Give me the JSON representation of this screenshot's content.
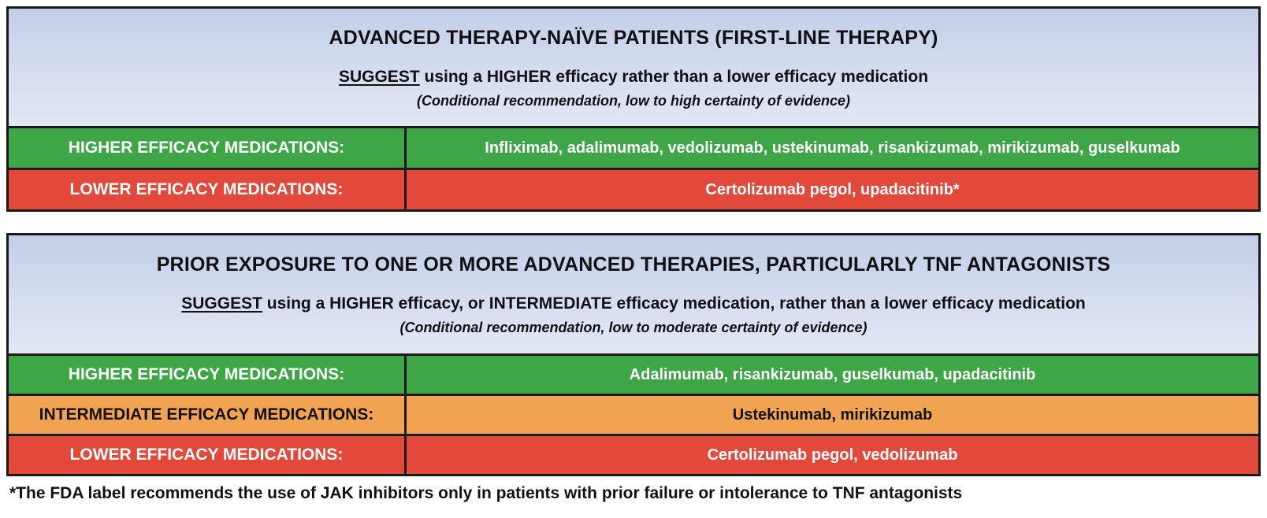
{
  "colors": {
    "panel_border": "#1a1a1a",
    "header_gradient_top": "#c2cee8",
    "header_gradient_bottom": "#e2e7f3",
    "higher_green": "#3ea646",
    "intermediate_orange": "#f2a351",
    "lower_red": "#e2493b",
    "row_text_light": "#ffffff",
    "row_text_dark": "#111111"
  },
  "panels": [
    {
      "title": "ADVANCED THERAPY-NAÏVE PATIENTS (FIRST-LINE THERAPY)",
      "recommendation_keyword": "SUGGEST",
      "recommendation_text": " using a HIGHER efficacy rather than a lower efficacy medication",
      "evidence_note": "(Conditional recommendation, low to high certainty of evidence)",
      "rows": [
        {
          "label": "HIGHER EFFICACY MEDICATIONS:",
          "medications": "Infliximab, adalimumab, vedolizumab, ustekinumab, risankizumab, mirikizumab, guselkumab"
        },
        {
          "label": "LOWER EFFICACY MEDICATIONS:",
          "medications": "Certolizumab pegol, upadacitinib*"
        }
      ]
    },
    {
      "title": "PRIOR EXPOSURE TO ONE OR MORE ADVANCED THERAPIES, PARTICULARLY TNF ANTAGONISTS",
      "recommendation_keyword": "SUGGEST",
      "recommendation_text": " using a HIGHER efficacy, or INTERMEDIATE efficacy medication, rather than a lower efficacy medication",
      "evidence_note": "(Conditional recommendation, low to moderate certainty of evidence)",
      "rows": [
        {
          "label": "HIGHER EFFICACY MEDICATIONS:",
          "medications": "Adalimumab, risankizumab, guselkumab, upadacitinib"
        },
        {
          "label": "INTERMEDIATE EFFICACY MEDICATIONS:",
          "medications": "Ustekinumab, mirikizumab"
        },
        {
          "label": "LOWER EFFICACY MEDICATIONS:",
          "medications": "Certolizumab pegol, vedolizumab"
        }
      ]
    }
  ],
  "footnote": "*The FDA label recommends the use of JAK inhibitors only in patients with prior failure or intolerance to TNF antagonists"
}
